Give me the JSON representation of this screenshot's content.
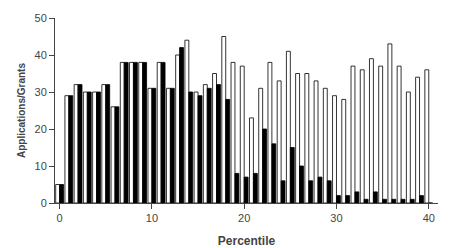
{
  "chart_data": {
    "type": "bar",
    "xlabel": "Percentile",
    "ylabel": "Applications/Grants",
    "x": [
      0,
      1,
      2,
      3,
      4,
      5,
      6,
      7,
      8,
      9,
      10,
      11,
      12,
      13,
      14,
      15,
      16,
      17,
      18,
      19,
      20,
      21,
      22,
      23,
      24,
      25,
      26,
      27,
      28,
      29,
      30,
      31,
      32,
      33,
      34,
      35,
      36,
      37,
      38,
      39,
      40
    ],
    "series": [
      {
        "color": "#ffffff",
        "values": [
          5,
          29,
          32,
          30,
          30,
          32,
          26,
          38,
          38,
          38,
          31,
          38,
          31,
          40,
          44,
          30,
          32,
          35,
          45,
          38,
          37,
          23,
          31,
          38,
          33,
          41,
          35,
          35,
          33,
          31,
          29,
          28,
          37,
          36,
          39,
          37,
          43,
          37,
          30,
          34,
          36
        ]
      },
      {
        "color": "#000000",
        "values": [
          5,
          29,
          32,
          30,
          30,
          32,
          26,
          38,
          38,
          38,
          31,
          38,
          31,
          42,
          30,
          29,
          31,
          32,
          28,
          8,
          7,
          8,
          20,
          16,
          6,
          15,
          10,
          6,
          7,
          6,
          2,
          2,
          3,
          1,
          3,
          1,
          1,
          1,
          1,
          2,
          0
        ]
      }
    ],
    "xlim": [
      -0.5,
      41.0
    ],
    "xticks": [
      0,
      10,
      20,
      30,
      40
    ],
    "ylim": [
      0,
      50
    ],
    "yticks": [
      0,
      10,
      20,
      30,
      40,
      50
    ],
    "grid": false
  }
}
